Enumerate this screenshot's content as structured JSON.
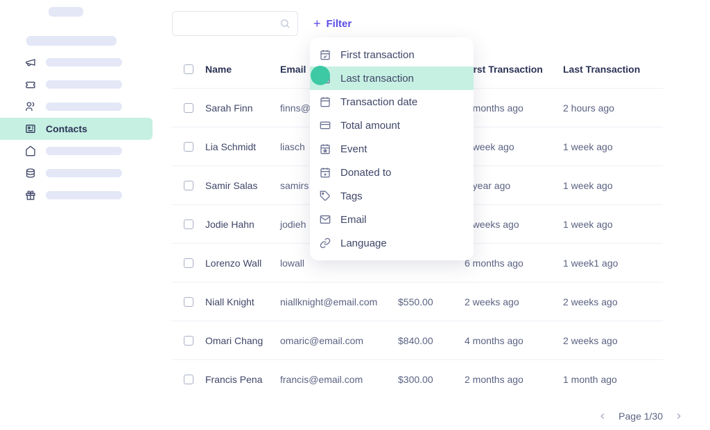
{
  "sidebar": {
    "active_label": "Contacts",
    "nav_icons": [
      "megaphone-icon",
      "ticket-icon",
      "people-icon",
      "id-card-icon",
      "house-icon",
      "coin-icon",
      "gift-icon"
    ]
  },
  "toolbar": {
    "filter_label": "Filter"
  },
  "table": {
    "headers": {
      "name": "Name",
      "email": "Email",
      "first_transaction": "First Transaction",
      "last_transaction": "Last Transaction"
    },
    "rows": [
      {
        "name": "Sarah Finn",
        "email": "finns@",
        "amount": "",
        "first": "6 months ago",
        "last": "2 hours ago"
      },
      {
        "name": "Lia Schmidt",
        "email": "liasch",
        "amount": "",
        "first": "2 week ago",
        "last": "1 week ago"
      },
      {
        "name": "Samir Salas",
        "email": "samirs",
        "amount": "",
        "first": "1 year ago",
        "last": "1  week ago"
      },
      {
        "name": "Jodie Hahn",
        "email": "jodieh",
        "amount": "",
        "first": "3 weeks ago",
        "last": "1 week ago"
      },
      {
        "name": "Lorenzo Wall",
        "email": "lowall",
        "amount": "",
        "first": "6 months ago",
        "last": "1 week1 ago"
      },
      {
        "name": "Niall Knight",
        "email": "niallknight@email.com",
        "amount": "$550.00",
        "first": "2 weeks ago",
        "last": "2 weeks ago"
      },
      {
        "name": "Omari Chang",
        "email": "omaric@email.com",
        "amount": "$840.00",
        "first": "4 months ago",
        "last": "2 weeks ago"
      },
      {
        "name": "Francis Pena",
        "email": "francis@email.com",
        "amount": "$300.00",
        "first": "2 months ago",
        "last": "1 month ago"
      }
    ]
  },
  "filter_menu": {
    "highlight_index": 1,
    "items": [
      {
        "icon": "calendar-check",
        "label": "First transaction"
      },
      {
        "icon": "calendar-check",
        "label": "Last transaction"
      },
      {
        "icon": "calendar",
        "label": "Transaction date"
      },
      {
        "icon": "card",
        "label": "Total amount"
      },
      {
        "icon": "calendar-star",
        "label": "Event"
      },
      {
        "icon": "calendar-arrow",
        "label": "Donated to"
      },
      {
        "icon": "tag",
        "label": "Tags"
      },
      {
        "icon": "mail",
        "label": "Email"
      },
      {
        "icon": "link",
        "label": "Language"
      }
    ]
  },
  "pagination": {
    "label": "Page 1/30"
  },
  "colors": {
    "text_primary": "#3f4668",
    "text_header": "#2b3356",
    "text_muted": "#5a6282",
    "accent_purple": "#5a4ee6",
    "highlight_mint": "#c6f0e2",
    "placeholder": "#e3e7f6",
    "border": "#eef0f6",
    "checkbox_border": "#a9afc4",
    "cursor_dot": "#3cc9a4",
    "background": "#ffffff"
  }
}
